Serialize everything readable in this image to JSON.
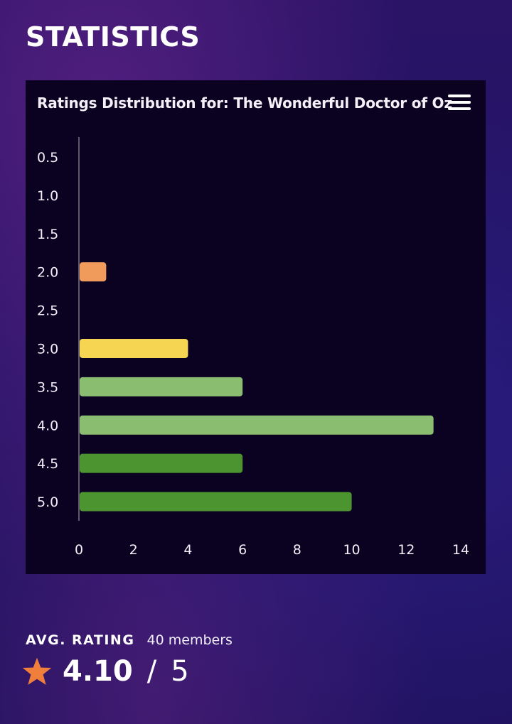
{
  "page": {
    "heading": "STATISTICS"
  },
  "chart_data": {
    "type": "bar",
    "orientation": "horizontal",
    "title": "Ratings Distribution for: The Wonderful Doctor of Oz",
    "categories": [
      "0.5",
      "1.0",
      "1.5",
      "2.0",
      "2.5",
      "3.0",
      "3.5",
      "4.0",
      "4.5",
      "5.0"
    ],
    "values": [
      0,
      0,
      0,
      1,
      0,
      4,
      6,
      13,
      6,
      10
    ],
    "colors": [
      "#f09a5c",
      "#f09a5c",
      "#f09a5c",
      "#f09a5c",
      "#f5d552",
      "#f5d552",
      "#8abd70",
      "#8abd70",
      "#4b9430",
      "#4b9430"
    ],
    "xlim": [
      0,
      14
    ],
    "xticks": [
      0,
      2,
      4,
      6,
      8,
      10,
      12,
      14
    ],
    "xticklabels": [
      "0",
      "2",
      "4",
      "6",
      "8",
      "10",
      "12",
      "14"
    ],
    "grid": false,
    "legend": "none"
  },
  "chart_menu": {
    "icon": "hamburger-menu-icon"
  },
  "summary": {
    "avg_label": "AVG. RATING",
    "members": "40 members",
    "average": "4.10",
    "separator": "/",
    "max": "5",
    "star_icon": "star-icon",
    "star_color": "#f07f3c"
  }
}
